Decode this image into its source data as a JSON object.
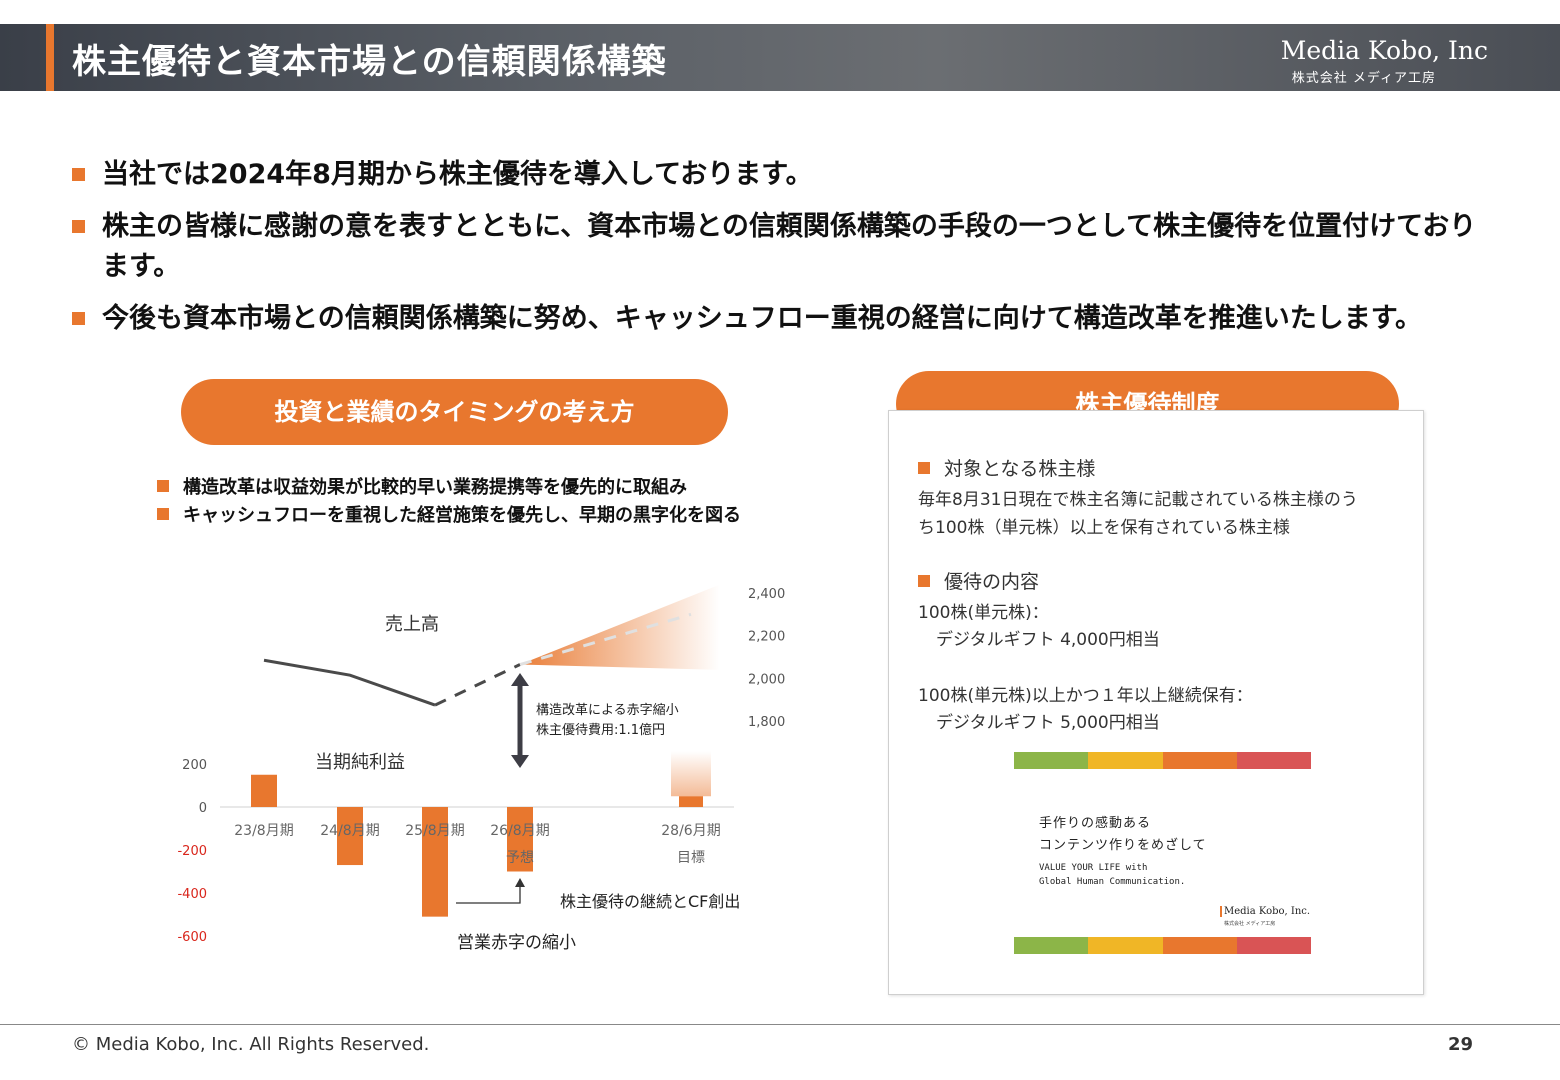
{
  "header": {
    "title": "株主優待と資本市場との信頼関係構築",
    "logo_en": "Media Kobo, Inc",
    "logo_jp": "株式会社 メディア工房"
  },
  "bullets": [
    "当社では2024年8月期から株主優待を導入しております。",
    "株主の皆様に感謝の意を表すとともに、資本市場との信頼関係構築の手段の一つとして株主優待を位置付けております。",
    "今後も資本市場との信頼関係構築に努め、キャッシュフロー重視の経営に向けて構造改革を推進いたします。"
  ],
  "left": {
    "pill": "投資と業績のタイミングの考え方",
    "points": [
      "構造改革は収益効果が比較的早い業務提携等を優先的に取組み",
      "キャッシュフローを重視した経営施策を優先し、早期の黒字化を図る"
    ]
  },
  "chart_data": {
    "type": "bar",
    "categories": [
      "23/8月期",
      "24/8月期",
      "25/8月期",
      "26/8月期 予想",
      "28/6月期 目標"
    ],
    "category_labels": [
      {
        "line1": "23/8月期",
        "line2": ""
      },
      {
        "line1": "24/8月期",
        "line2": ""
      },
      {
        "line1": "25/8月期",
        "line2": ""
      },
      {
        "line1": "26/8月期",
        "line2": "予想"
      },
      {
        "line1": "28/6月期",
        "line2": "目標"
      }
    ],
    "series": [
      {
        "name": "当期純利益",
        "type": "bar",
        "axis": "left",
        "values": [
          150,
          -270,
          -510,
          -300,
          50
        ]
      },
      {
        "name": "売上高",
        "type": "line",
        "axis": "right",
        "values": [
          2085,
          2015,
          1875,
          2065,
          2300
        ],
        "dashed_from_index": 2
      }
    ],
    "left_axis": {
      "ticks": [
        "200",
        "0",
        "-200",
        "-400",
        "-600"
      ],
      "ylim": [
        -700,
        300
      ],
      "negative_color": "#d9261c"
    },
    "right_axis": {
      "ticks": [
        "2,400",
        "2,200",
        "2,000",
        "1,800"
      ],
      "ylim": [
        1640,
        2440
      ]
    },
    "annotations": {
      "sales_label": "売上高",
      "profit_label": "当期純利益",
      "arrow_note_1": "構造改革による赤字縮小",
      "arrow_note_2": "株主優待費用:1.1億円",
      "cf_note": "株主優待の継続とCF創出",
      "op_note": "営業赤字の縮小"
    },
    "bar_color": "#e8772e",
    "line_color": "#4a4a4a"
  },
  "right": {
    "pill": "株主優待制度",
    "target_head": "対象となる株主様",
    "target_line1": "毎年8月31日現在で株主名簿に記載されている株主様のう",
    "target_line2": "ち100株（単元株）以上を保有されている株主様",
    "content_head": "優待の内容",
    "content_line1": "100株(単元株)：",
    "content_line2": "デジタルギフト 4,000円相当",
    "content_line3": "100株(単元株)以上かつ１年以上継続保有：",
    "content_line4": "デジタルギフト 5,000円相当",
    "gift_card": {
      "line1": "手作りの感動ある",
      "line2": "コンテンツ作りをめざして",
      "line3": "VALUE YOUR LIFE with",
      "line4": "Global Human Communication.",
      "logo_en": "Media Kobo, Inc.",
      "logo_jp": "株式会社 メディア工房",
      "stripe_colors": [
        "#8cb548",
        "#f0b626",
        "#e8772e",
        "#d95455"
      ]
    }
  },
  "footer": {
    "copyright": "© Media Kobo, Inc. All Rights Reserved.",
    "page": "29"
  },
  "colors": {
    "accent": "#e8772e"
  }
}
